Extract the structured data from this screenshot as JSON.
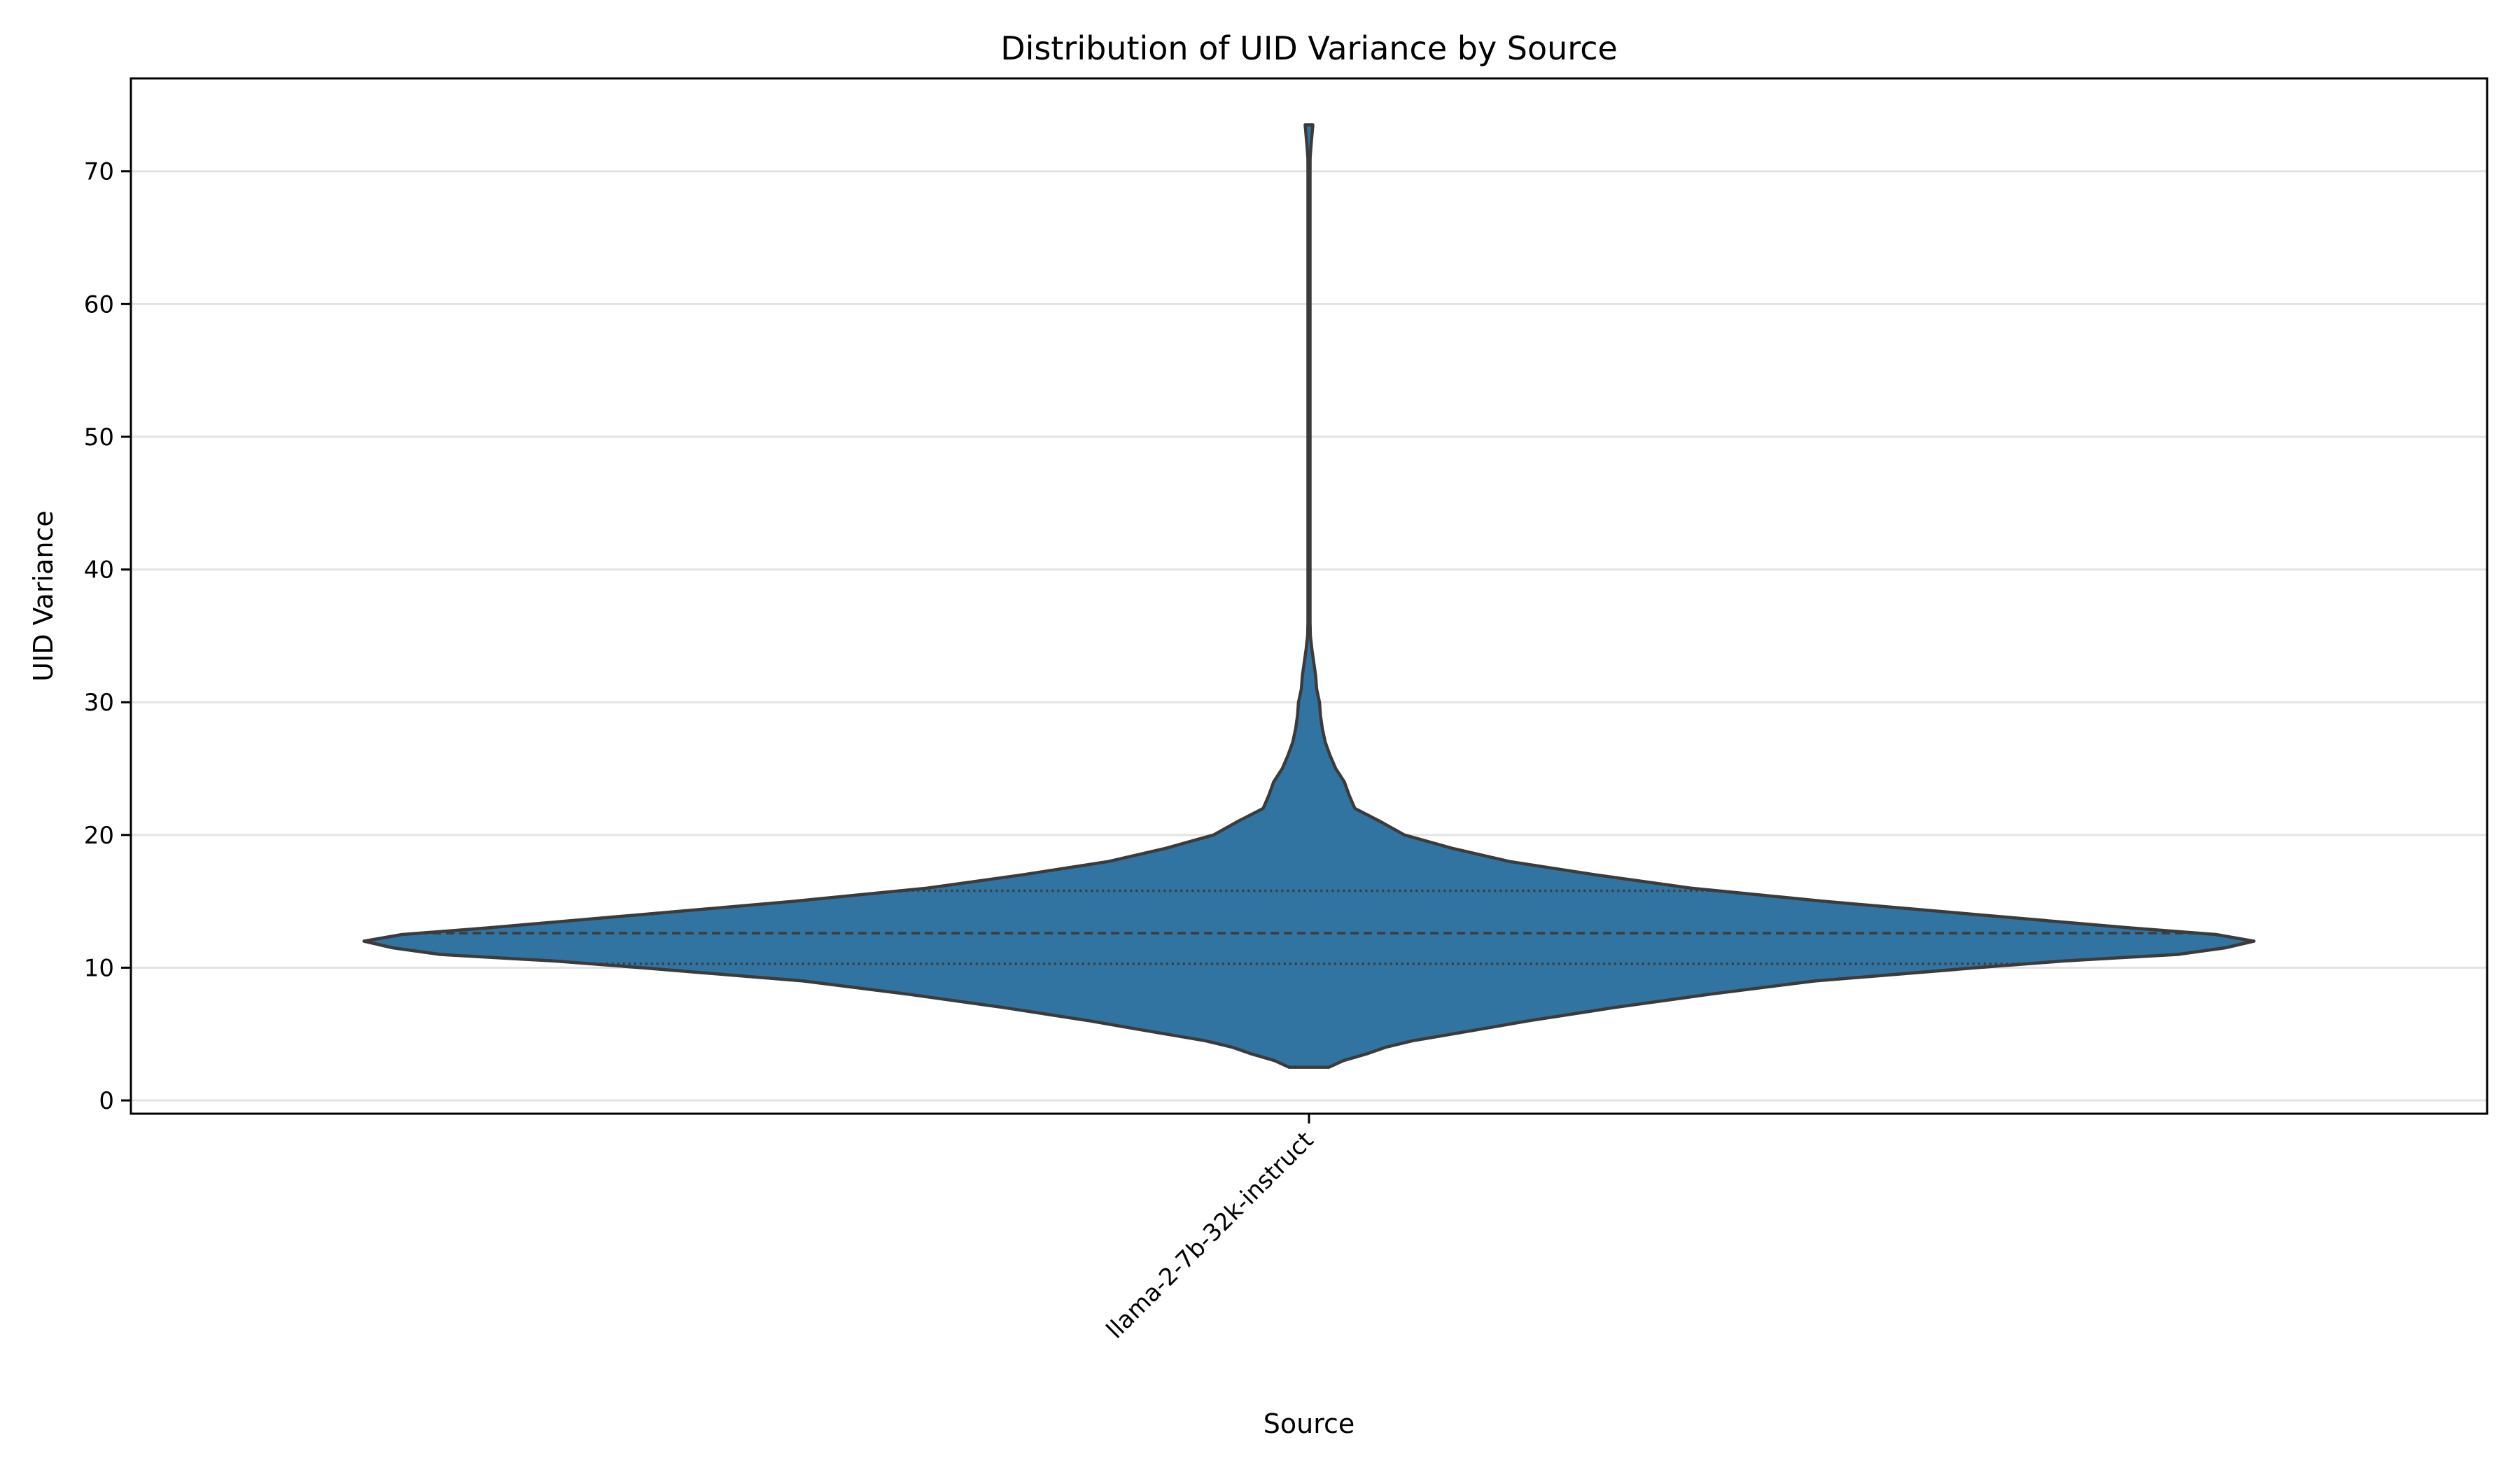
{
  "chart_data": {
    "type": "violin",
    "title": "Distribution of UID Variance by Source",
    "xlabel": "Source",
    "ylabel": "UID Variance",
    "categories": [
      "llama-2-7b-32k-instruct"
    ],
    "ylim": [
      -1,
      77
    ],
    "yticks": [
      0,
      10,
      20,
      30,
      40,
      50,
      60,
      70
    ],
    "grid": "horizontal",
    "color": "#3274a1",
    "edge_color": "#3b3b3b",
    "violins": [
      {
        "category": "llama-2-7b-32k-instruct",
        "min": 2.5,
        "max": 73.5,
        "q1": 10.3,
        "median": 12.6,
        "q3": 15.8,
        "density_profile": [
          [
            2.5,
            0.021
          ],
          [
            3.0,
            0.036
          ],
          [
            3.5,
            0.06
          ],
          [
            4.0,
            0.08
          ],
          [
            4.5,
            0.109
          ],
          [
            5.0,
            0.15
          ],
          [
            5.5,
            0.19
          ],
          [
            6.0,
            0.23
          ],
          [
            7.0,
            0.32
          ],
          [
            8.0,
            0.42
          ],
          [
            9.0,
            0.53
          ],
          [
            10.0,
            0.7
          ],
          [
            10.5,
            0.79
          ],
          [
            11.0,
            0.91
          ],
          [
            11.5,
            0.96
          ],
          [
            12.0,
            0.99
          ],
          [
            12.5,
            0.95
          ],
          [
            13.0,
            0.86
          ],
          [
            14.0,
            0.7
          ],
          [
            15.0,
            0.54
          ],
          [
            16.0,
            0.4
          ],
          [
            17.0,
            0.3
          ],
          [
            18.0,
            0.21
          ],
          [
            19.0,
            0.15
          ],
          [
            20.0,
            0.1
          ],
          [
            21.0,
            0.075
          ],
          [
            22.0,
            0.048
          ],
          [
            23.0,
            0.042
          ],
          [
            24.0,
            0.037
          ],
          [
            25.0,
            0.028
          ],
          [
            26.0,
            0.022
          ],
          [
            27.0,
            0.017
          ],
          [
            28.0,
            0.014
          ],
          [
            29.0,
            0.012
          ],
          [
            30.0,
            0.011
          ],
          [
            31.0,
            0.008
          ],
          [
            32.0,
            0.007
          ],
          [
            33.0,
            0.005
          ],
          [
            34.0,
            0.003
          ],
          [
            35.0,
            0.0015
          ],
          [
            36.0,
            0.0008
          ],
          [
            37.0,
            0.0004
          ],
          [
            40.0,
            0.0004
          ],
          [
            50.0,
            0.0004
          ],
          [
            60.0,
            0.0004
          ],
          [
            68.0,
            0.0004
          ],
          [
            70.0,
            0.0004
          ],
          [
            71.0,
            0.0012
          ],
          [
            72.0,
            0.0022
          ],
          [
            73.5,
            0.004
          ]
        ]
      }
    ]
  }
}
